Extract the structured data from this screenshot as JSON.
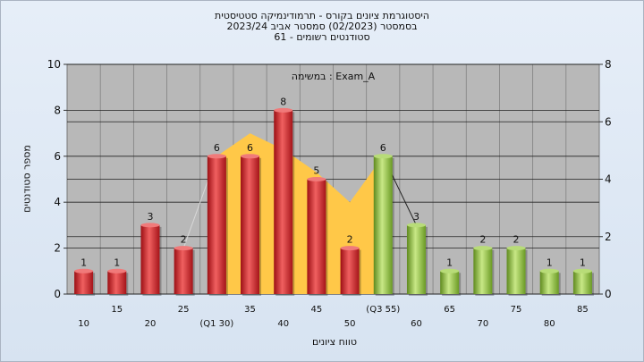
{
  "header": {
    "title_line1": "היסטוגרמת ציונים בקורס - תרמודינמיקה סטטיסטית",
    "title_line2": "בסמסטר  (02/2023)  סמסטר אביב 2023/24",
    "title_line3": "סטודנטים רשומים - 61"
  },
  "chart_data": {
    "type": "bar",
    "annotation": "במשימה : Exam_A",
    "xlabel": "טווח ציונים",
    "ylabel": "מספר סטודנטים",
    "ylim": [
      0,
      10
    ],
    "y2lim": [
      0,
      8
    ],
    "yticks": [
      0,
      2,
      4,
      6,
      8,
      10
    ],
    "y2ticks": [
      0,
      2,
      4,
      6,
      8
    ],
    "grid": true,
    "categories": [
      "10",
      "15",
      "20",
      "25",
      "(Q1 30)",
      "35",
      "40",
      "45",
      "50",
      "(Q3 55)",
      "60",
      "65",
      "70",
      "75",
      "80",
      "85"
    ],
    "values": [
      1,
      1,
      3,
      2,
      6,
      6,
      8,
      5,
      2,
      6,
      3,
      1,
      2,
      2,
      1,
      1
    ],
    "bar_colors": [
      "red",
      "red",
      "red",
      "red",
      "red",
      "red",
      "red",
      "red",
      "red",
      "green",
      "green",
      "green",
      "green",
      "green",
      "green",
      "green"
    ],
    "area_series": {
      "x": [
        "(Q1 30)",
        "35",
        "40",
        "45",
        "50",
        "(Q3 55)"
      ],
      "values": [
        6.0,
        7.0,
        6.3,
        5.3,
        4.0,
        6.0
      ]
    },
    "colors": {
      "red": "#d42428",
      "green": "#8cbd3c",
      "area": "#ffc848",
      "plot_bg": "#b8b8b8"
    }
  }
}
